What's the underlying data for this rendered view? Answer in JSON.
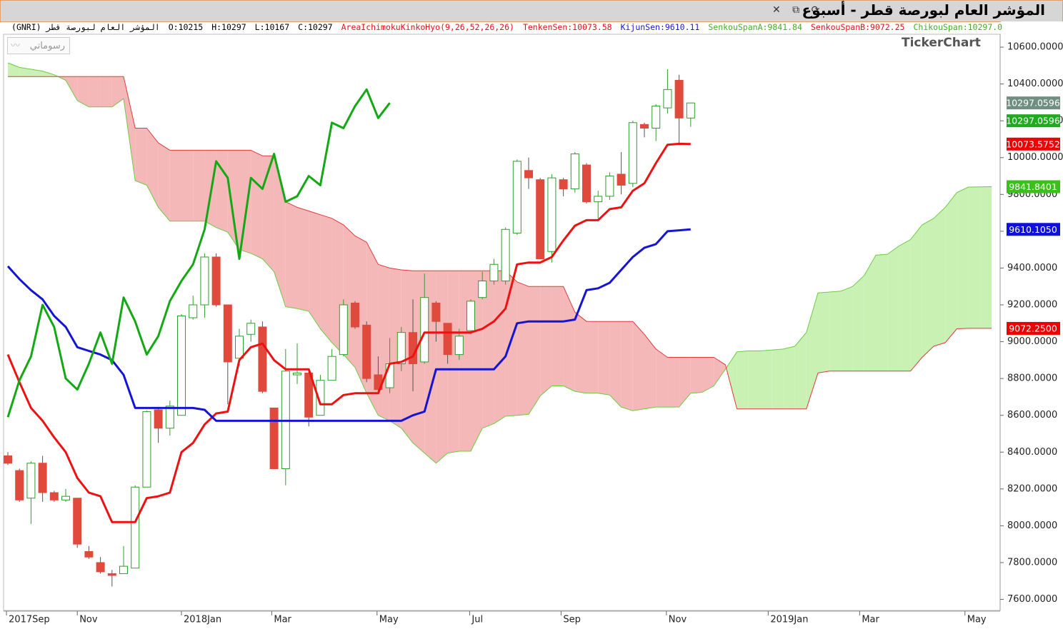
{
  "title_bar": {
    "title": "المؤشر العام لبورصة قطر - أسبوع"
  },
  "button": "رسوماتي",
  "logo": "TickerChart",
  "chart_data": {
    "type": "candlestick",
    "info": [
      {
        "text": "المؤشر العام لبورصة قطر (GNRI)",
        "color": "#000000"
      },
      {
        "text": "O:10215",
        "color": "#000000"
      },
      {
        "text": "H:10297",
        "color": "#000000"
      },
      {
        "text": "L:10167",
        "color": "#000000"
      },
      {
        "text": "C:10297",
        "color": "#000000"
      },
      {
        "text": "AreaIchimokuKinkoHyo(9,26,52,26,26)",
        "color": "#e8101a"
      },
      {
        "text": "TenkenSen:10073.58",
        "color": "#e8101a"
      },
      {
        "text": "KijunSen:9610.11",
        "color": "#1a1ad8"
      },
      {
        "text": "SenkouSpanA:9841.84",
        "color": "#40b020"
      },
      {
        "text": "SenkouSpanB:9072.25",
        "color": "#e8101a"
      },
      {
        "text": "ChikouSpan:10297.0",
        "color": "#40b020"
      }
    ],
    "x": [
      0,
      1,
      2,
      3,
      4,
      5,
      6,
      7,
      8,
      9,
      10,
      11,
      12,
      13,
      14,
      15,
      16,
      17,
      18,
      19,
      20,
      21,
      22,
      23,
      24,
      25,
      26,
      27,
      28,
      29,
      30,
      31,
      32,
      33,
      34,
      35,
      36,
      37,
      38,
      39,
      40,
      41,
      42,
      43,
      44,
      45,
      46,
      47,
      48,
      49,
      50,
      51,
      52,
      53,
      54,
      55,
      56,
      57,
      58,
      59,
      60,
      61,
      62,
      63,
      64,
      65,
      66,
      67,
      68,
      69,
      70,
      71,
      72,
      73,
      74,
      75,
      76,
      77,
      78,
      79,
      80,
      81,
      82,
      83,
      84,
      85
    ],
    "xlim": [
      -0.68,
      85.74
    ],
    "xticks": [
      {
        "value": -0.12,
        "label": "2017Sep"
      },
      {
        "value": 6.0,
        "label": "Nov"
      },
      {
        "value": 15.0,
        "label": "2018Jan"
      },
      {
        "value": 22.8,
        "label": "Mar"
      },
      {
        "value": 31.9,
        "label": "May"
      },
      {
        "value": 39.9,
        "label": "Jul"
      },
      {
        "value": 47.8,
        "label": "Sep"
      },
      {
        "value": 56.9,
        "label": "Nov"
      },
      {
        "value": 65.7,
        "label": "2019Jan"
      },
      {
        "value": 73.6,
        "label": "Mar"
      },
      {
        "value": 82.7,
        "label": "May"
      }
    ],
    "ylim": [
      7540,
      10670
    ],
    "yticks": [
      {
        "value": 7600,
        "label": "7600.0000"
      },
      {
        "value": 7800,
        "label": "7800.0000"
      },
      {
        "value": 8000,
        "label": "8000.0000"
      },
      {
        "value": 8200,
        "label": "8200.0000"
      },
      {
        "value": 8400,
        "label": "8400.0000"
      },
      {
        "value": 8600,
        "label": "8600.0000"
      },
      {
        "value": 8800,
        "label": "8800.0000"
      },
      {
        "value": 9000,
        "label": "9000.0000"
      },
      {
        "value": 9200,
        "label": "9200.0000"
      },
      {
        "value": 9400,
        "label": "9400.0000"
      },
      {
        "value": 9600,
        "label": "9600.0000"
      },
      {
        "value": 9800,
        "label": "9800.0000"
      },
      {
        "value": 10000,
        "label": "10000.0000"
      },
      {
        "value": 10200,
        "label": "10200.0000"
      },
      {
        "value": 10400,
        "label": "10400.0000"
      },
      {
        "value": 10600,
        "label": "10600.0000"
      }
    ],
    "grid": false,
    "candles": {
      "up_color": "#2e9e2e",
      "down_color": "#e04a3c",
      "open": [
        8380,
        8300,
        8150,
        8340,
        8180,
        8140,
        8150,
        7860,
        7800,
        7740,
        7740,
        7770,
        8210,
        8630,
        8530,
        8600,
        9130,
        9200,
        9460,
        9200,
        8910,
        9040,
        9080,
        8640,
        8310,
        8820,
        8830,
        8600,
        8790,
        8930,
        9210,
        9090,
        8820,
        8750,
        8880,
        9050,
        8890,
        9210,
        9100,
        8930,
        9060,
        9240,
        9330,
        9330,
        9590,
        9930,
        9880,
        9490,
        9880,
        9830,
        9960,
        9760,
        9790,
        9910,
        9860,
        10180,
        10160,
        10270,
        10420,
        10215,
        null,
        null,
        null,
        null,
        null,
        null,
        null,
        null,
        null,
        null,
        null,
        null,
        null,
        null,
        null,
        null,
        null,
        null,
        null,
        null,
        null,
        null,
        null,
        null,
        null,
        null
      ],
      "high": [
        8400,
        8310,
        8350,
        8380,
        8190,
        8200,
        8150,
        7890,
        7830,
        7760,
        7890,
        8220,
        8625,
        8640,
        8680,
        9150,
        9250,
        9480,
        9480,
        9200,
        9070,
        9120,
        9110,
        8640,
        8960,
        8990,
        8840,
        8820,
        8960,
        9230,
        9220,
        9110,
        8920,
        9020,
        9080,
        9230,
        9370,
        9220,
        9100,
        9070,
        9230,
        9380,
        9450,
        9620,
        9990,
        10000,
        9890,
        9910,
        9890,
        10030,
        9970,
        9820,
        9920,
        10030,
        10200,
        10190,
        10290,
        10480,
        10450,
        10297,
        null,
        null,
        null,
        null,
        null,
        null,
        null,
        null,
        null,
        null,
        null,
        null,
        null,
        null,
        null,
        null,
        null,
        null,
        null,
        null,
        null,
        null,
        null,
        null,
        null,
        null
      ],
      "low": [
        8330,
        8130,
        8010,
        8130,
        8130,
        8130,
        7880,
        7820,
        7740,
        7670,
        7740,
        7770,
        8210,
        8450,
        8490,
        8600,
        9120,
        9130,
        9190,
        8660,
        8870,
        9000,
        8720,
        8310,
        8220,
        8770,
        8540,
        8600,
        8790,
        8920,
        9070,
        8780,
        8720,
        8720,
        8840,
        8730,
        8880,
        9000,
        8880,
        8900,
        9040,
        9230,
        9310,
        9310,
        9580,
        9830,
        9450,
        9430,
        9790,
        9810,
        9750,
        9670,
        9770,
        9800,
        9840,
        10110,
        10090,
        10240,
        10080,
        10167,
        null,
        null,
        null,
        null,
        null,
        null,
        null,
        null,
        null,
        null,
        null,
        null,
        null,
        null,
        null,
        null,
        null,
        null,
        null,
        null,
        null,
        null,
        null,
        null,
        null,
        null
      ],
      "close": [
        8340,
        8140,
        8340,
        8180,
        8140,
        8160,
        7900,
        7830,
        7750,
        7730,
        7780,
        8210,
        8620,
        8530,
        8650,
        9140,
        9200,
        9460,
        9200,
        8890,
        9030,
        9100,
        8730,
        8310,
        8840,
        8830,
        8590,
        8790,
        8920,
        9200,
        9080,
        8800,
        8740,
        8880,
        9050,
        8880,
        9240,
        9110,
        8930,
        9030,
        9220,
        9330,
        9420,
        9610,
        9980,
        9890,
        9450,
        9890,
        9830,
        10020,
        9760,
        9790,
        9900,
        9850,
        10190,
        10160,
        10280,
        10370,
        10215,
        10297,
        null,
        null,
        null,
        null,
        null,
        null,
        null,
        null,
        null,
        null,
        null,
        null,
        null,
        null,
        null,
        null,
        null,
        null,
        null,
        null,
        null,
        null,
        null,
        null,
        null,
        null
      ]
    },
    "cloud": {
      "fill_a_above": "#c9f1b3",
      "fill_b_above": "#f4b8b8",
      "span_a": {
        "color": "#6ccc44",
        "values": [
          10515,
          10490,
          10480,
          10470,
          10450,
          10420,
          10310,
          10275,
          10275,
          10275,
          10320,
          9875,
          9850,
          9730,
          9655,
          9655,
          9655,
          9655,
          9620,
          9595,
          9500,
          9480,
          9450,
          9380,
          9190,
          9180,
          9165,
          9070,
          8995,
          8930,
          8860,
          8720,
          8600,
          8570,
          8530,
          8450,
          8395,
          8340,
          8395,
          8405,
          8405,
          8530,
          8555,
          8595,
          8600,
          8605,
          8705,
          8760,
          8760,
          8730,
          8720,
          8720,
          8710,
          8645,
          8625,
          8635,
          8645,
          8645,
          8645,
          8720,
          8725,
          8760,
          8850,
          8945,
          8950,
          8950,
          8955,
          8960,
          8975,
          9050,
          9265,
          9270,
          9275,
          9300,
          9360,
          9470,
          9475,
          9520,
          9555,
          9635,
          9670,
          9730,
          9810,
          9840,
          9841,
          9841.84
        ]
      },
      "span_b": {
        "color": "#e03a3a",
        "values": [
          10440,
          10440,
          10440,
          10440,
          10440,
          10440,
          10440,
          10440,
          10440,
          10440,
          10440,
          10160,
          10160,
          10080,
          10040,
          10040,
          10040,
          10040,
          10040,
          10040,
          10040,
          10040,
          10010,
          10010,
          9760,
          9730,
          9710,
          9690,
          9670,
          9635,
          9575,
          9540,
          9420,
          9400,
          9390,
          9385,
          9385,
          9385,
          9385,
          9385,
          9385,
          9385,
          9385,
          9385,
          9325,
          9300,
          9300,
          9300,
          9300,
          9160,
          9110,
          9110,
          9110,
          9110,
          9110,
          9040,
          8960,
          8915,
          8915,
          8915,
          8915,
          8915,
          8875,
          8635,
          8635,
          8635,
          8635,
          8635,
          8635,
          8635,
          8830,
          8840,
          8840,
          8840,
          8840,
          8840,
          8840,
          8840,
          8840,
          8915,
          8975,
          8995,
          9070,
          9072.25,
          9072.25,
          9072.25
        ]
      }
    },
    "lines": [
      {
        "color": "#ee1111",
        "values": [
          8930,
          8780,
          8640,
          8570,
          8480,
          8400,
          8260,
          8180,
          8160,
          8020,
          8020,
          8020,
          8150,
          8160,
          8180,
          8400,
          8450,
          8550,
          8610,
          8620,
          8900,
          8970,
          8990,
          8900,
          8850,
          8850,
          8850,
          8660,
          8660,
          8710,
          8720,
          8720,
          8720,
          8880,
          8890,
          8920,
          9050,
          9050,
          9050,
          9050,
          9050,
          9070,
          9110,
          9180,
          9420,
          9430,
          9430,
          9460,
          9550,
          9630,
          9660,
          9660,
          9720,
          9730,
          9820,
          9860,
          9970,
          10070,
          10075,
          10073.58,
          null,
          null,
          null,
          null,
          null,
          null,
          null,
          null,
          null,
          null,
          null,
          null,
          null,
          null,
          null,
          null,
          null,
          null,
          null,
          null,
          null,
          null,
          null,
          null,
          null,
          null
        ]
      },
      {
        "color": "#1414d4",
        "values": [
          9410,
          9340,
          9280,
          9230,
          9140,
          9080,
          8970,
          8950,
          8930,
          8900,
          8820,
          8640,
          8640,
          8640,
          8640,
          8640,
          8640,
          8630,
          8570,
          8570,
          8570,
          8570,
          8570,
          8570,
          8570,
          8570,
          8570,
          8570,
          8570,
          8570,
          8570,
          8570,
          8570,
          8570,
          8570,
          8600,
          8620,
          8850,
          8850,
          8850,
          8850,
          8850,
          8850,
          8920,
          9100,
          9110,
          9110,
          9110,
          9110,
          9120,
          9280,
          9290,
          9320,
          9390,
          9460,
          9510,
          9530,
          9600,
          9605,
          9610.11,
          null,
          null,
          null,
          null,
          null,
          null,
          null,
          null,
          null,
          null,
          null,
          null,
          null,
          null,
          null,
          null,
          null,
          null,
          null,
          null,
          null,
          null,
          null,
          null,
          null,
          null
        ]
      },
      {
        "color": "#14a814",
        "values": [
          8590,
          8790,
          8920,
          9200,
          9080,
          8800,
          8740,
          8880,
          9050,
          8880,
          9240,
          9110,
          8930,
          9030,
          9220,
          9330,
          9420,
          9610,
          9980,
          9890,
          9450,
          9890,
          9830,
          10020,
          9760,
          9790,
          9900,
          9850,
          10190,
          10160,
          10280,
          10370,
          10215,
          10297,
          null,
          null,
          null,
          null,
          null,
          null,
          null,
          null,
          null,
          null,
          null,
          null,
          null,
          null,
          null,
          null,
          null,
          null,
          null,
          null,
          null,
          null,
          null,
          null,
          null,
          null,
          null,
          null,
          null,
          null,
          null,
          null,
          null,
          null,
          null,
          null,
          null,
          null,
          null,
          null,
          null,
          null,
          null,
          null,
          null,
          null,
          null,
          null,
          null,
          null,
          null,
          null
        ]
      }
    ],
    "price_tags": [
      {
        "value": 10297.0596,
        "label": "10297.0596",
        "color": "#6f8f80"
      },
      {
        "value": 10297.0596,
        "label": "10297.0596",
        "color": "#1faa1f"
      },
      {
        "value": 10073.5752,
        "label": "10073.5752",
        "color": "#ee0000"
      },
      {
        "value": 9841.8401,
        "label": "9841.8401",
        "color": "#3cbf1c"
      },
      {
        "value": 9610.105,
        "label": "9610.1050",
        "color": "#1010dd"
      },
      {
        "value": 9072.25,
        "label": "9072.2500",
        "color": "#ee0000"
      }
    ]
  }
}
